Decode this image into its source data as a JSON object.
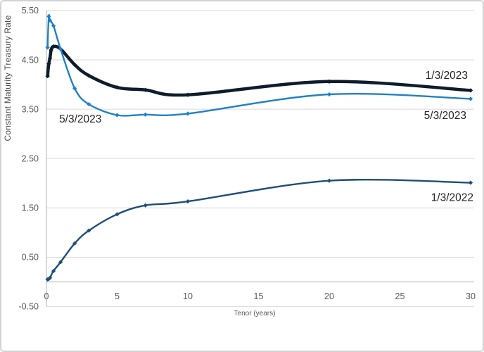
{
  "window": {
    "background": "#ffffff",
    "border_color": "#d3d3d3"
  },
  "chart_data": {
    "type": "line",
    "title": "",
    "xlabel": "Tenor (years)",
    "ylabel": "Constant Maturity Treasury Rate",
    "xlim": [
      0,
      30
    ],
    "ylim": [
      -0.5,
      5.5
    ],
    "grid": true,
    "legend_position": "none - series labeled by inline text annotations",
    "x_ticks": [
      {
        "value": 0,
        "label": "0"
      },
      {
        "value": 5,
        "label": "5"
      },
      {
        "value": 10,
        "label": "10"
      },
      {
        "value": 15,
        "label": "15"
      },
      {
        "value": 20,
        "label": "20"
      },
      {
        "value": 25,
        "label": "25"
      },
      {
        "value": 30,
        "label": "30"
      }
    ],
    "y_ticks": [
      {
        "value": -0.5,
        "label": "-0.50"
      },
      {
        "value": 0.5,
        "label": "0.50"
      },
      {
        "value": 1.5,
        "label": "1.50"
      },
      {
        "value": 2.5,
        "label": "2.50"
      },
      {
        "value": 3.5,
        "label": "3.50"
      },
      {
        "value": 4.5,
        "label": "4.50"
      },
      {
        "value": 5.5,
        "label": "5.50"
      }
    ],
    "series": [
      {
        "name": "1/3/2023",
        "color": "#0e1c2c",
        "line_width": 4.5,
        "marker": "diamond",
        "marker_size": 3.2,
        "x": [
          0.083,
          0.167,
          0.25,
          0.333,
          0.5,
          1,
          2,
          3,
          5,
          7,
          10,
          20,
          30
        ],
        "y": [
          4.17,
          4.42,
          4.53,
          4.7,
          4.77,
          4.72,
          4.4,
          4.18,
          3.94,
          3.89,
          3.79,
          4.06,
          3.88
        ]
      },
      {
        "name": "5/3/2023",
        "color": "#2181c4",
        "line_width": 2.4,
        "marker": "diamond",
        "marker_size": 3.1,
        "x": [
          0.083,
          0.167,
          0.25,
          0.5,
          1,
          2,
          3,
          5,
          7,
          10,
          20,
          30
        ],
        "y": [
          4.75,
          5.38,
          5.3,
          5.19,
          4.72,
          3.92,
          3.6,
          3.38,
          3.39,
          3.41,
          3.8,
          3.71
        ]
      },
      {
        "name": "1/3/2022",
        "color": "#1f4e79",
        "line_width": 2.4,
        "marker": "diamond",
        "marker_size": 3.1,
        "x": [
          0.083,
          0.167,
          0.25,
          0.5,
          1,
          2,
          3,
          5,
          7,
          10,
          20,
          30
        ],
        "y": [
          0.05,
          0.06,
          0.08,
          0.22,
          0.4,
          0.78,
          1.04,
          1.37,
          1.55,
          1.63,
          2.05,
          2.01
        ]
      }
    ],
    "annotations": [
      {
        "text": "1/3/2023",
        "x": 28.3,
        "y": 4.19,
        "series": "1/3/2023"
      },
      {
        "text": "5/3/2023",
        "x": 28.2,
        "y": 3.38,
        "series": "5/3/2023"
      },
      {
        "text": "1/3/2022",
        "x": 28.7,
        "y": 1.72,
        "series": "1/3/2022"
      },
      {
        "text": "5/3/2023",
        "x": 2.4,
        "y": 3.31,
        "series": "5/3/2023"
      }
    ],
    "style": {
      "gridline_color": "#d9d9d9",
      "axis_line_color": "#bfbfbf",
      "tick_text_color": "#595959",
      "annotation_text_color": "#242424"
    }
  }
}
